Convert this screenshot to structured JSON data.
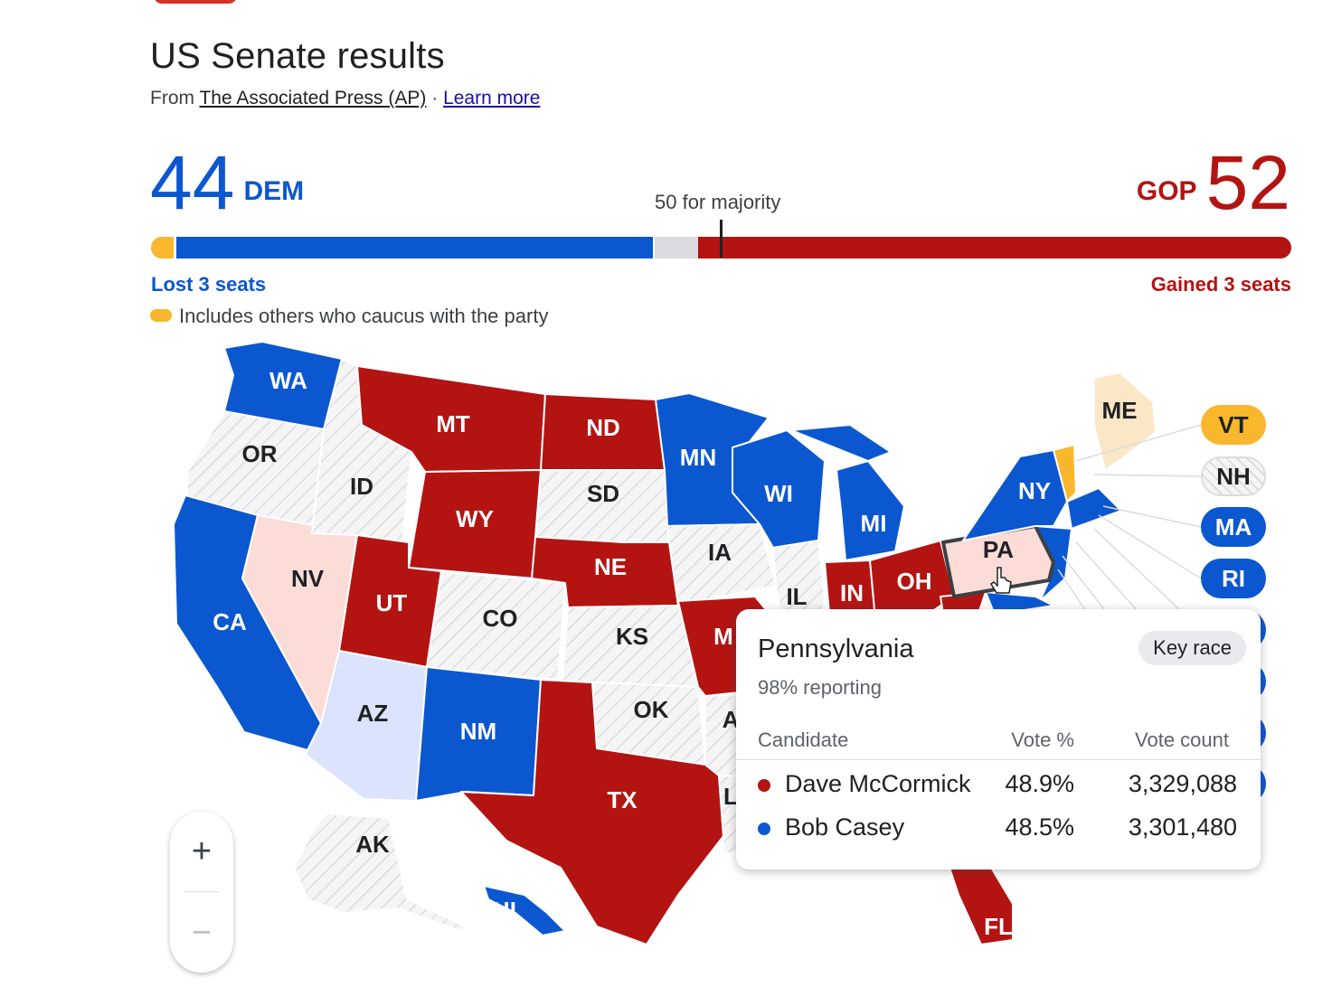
{
  "header": {
    "title": "US Senate results",
    "source_prefix": "From ",
    "source_link": "The Associated Press (AP)",
    "separator": " · ",
    "learn_more": "Learn more"
  },
  "tally": {
    "dem_seats": "44",
    "dem_label": "DEM",
    "gop_seats": "52",
    "gop_label": "GOP",
    "majority_label": "50 for majority",
    "dem_change": "Lost 3 seats",
    "gop_change": "Gained 3 seats",
    "legend_text": "Includes others who caucus with the party",
    "seat_split": {
      "independent_dem": 2,
      "dem": 42,
      "undecided": 4,
      "gop": 52,
      "majority": 50
    }
  },
  "colors": {
    "dem": "#0b57d0",
    "gop": "#b31412",
    "independent": "#f9b72d",
    "lean_dem": "#dbe3fd",
    "lean_gop": "#fbdcd7",
    "lean_ind": "#fbe6c6",
    "no_race": "#f1f3f4",
    "undecided_bar": "#dadce0"
  },
  "map": {
    "states": [
      {
        "id": "WA",
        "label": "WA",
        "status": "dem"
      },
      {
        "id": "OR",
        "label": "OR",
        "status": "none"
      },
      {
        "id": "CA",
        "label": "CA",
        "status": "dem"
      },
      {
        "id": "NV",
        "label": "NV",
        "status": "lean_gop"
      },
      {
        "id": "ID",
        "label": "ID",
        "status": "none"
      },
      {
        "id": "MT",
        "label": "MT",
        "status": "gop"
      },
      {
        "id": "WY",
        "label": "WY",
        "status": "gop"
      },
      {
        "id": "UT",
        "label": "UT",
        "status": "gop"
      },
      {
        "id": "AZ",
        "label": "AZ",
        "status": "lean_dem"
      },
      {
        "id": "CO",
        "label": "CO",
        "status": "none"
      },
      {
        "id": "NM",
        "label": "NM",
        "status": "dem"
      },
      {
        "id": "ND",
        "label": "ND",
        "status": "gop"
      },
      {
        "id": "SD",
        "label": "SD",
        "status": "none"
      },
      {
        "id": "NE",
        "label": "NE",
        "status": "gop"
      },
      {
        "id": "KS",
        "label": "KS",
        "status": "none"
      },
      {
        "id": "OK",
        "label": "OK",
        "status": "none"
      },
      {
        "id": "TX",
        "label": "TX",
        "status": "gop"
      },
      {
        "id": "MN",
        "label": "MN",
        "status": "dem"
      },
      {
        "id": "IA",
        "label": "IA",
        "status": "none"
      },
      {
        "id": "MO",
        "label": "M",
        "status": "gop"
      },
      {
        "id": "AR",
        "label": "A",
        "status": "none"
      },
      {
        "id": "LA",
        "label": "L",
        "status": "none"
      },
      {
        "id": "WI",
        "label": "WI",
        "status": "dem"
      },
      {
        "id": "IL",
        "label": "IL",
        "status": "none"
      },
      {
        "id": "MI",
        "label": "MI",
        "status": "dem"
      },
      {
        "id": "IN",
        "label": "IN",
        "status": "gop"
      },
      {
        "id": "OH",
        "label": "OH",
        "status": "gop"
      },
      {
        "id": "WV",
        "label": "",
        "status": "gop"
      },
      {
        "id": "PA",
        "label": "PA",
        "status": "lean_gop"
      },
      {
        "id": "NY",
        "label": "NY",
        "status": "dem"
      },
      {
        "id": "ME",
        "label": "ME",
        "status": "lean_ind"
      },
      {
        "id": "FL",
        "label": "FL",
        "status": "gop"
      },
      {
        "id": "AK",
        "label": "AK",
        "status": "none"
      },
      {
        "id": "HI",
        "label": "HI",
        "status": "dem"
      }
    ],
    "northeast_chips": [
      {
        "id": "VT",
        "label": "VT",
        "status": "independent"
      },
      {
        "id": "NH",
        "label": "NH",
        "status": "none"
      },
      {
        "id": "MA",
        "label": "MA",
        "status": "dem"
      },
      {
        "id": "RI",
        "label": "RI",
        "status": "dem"
      }
    ]
  },
  "zoom": {
    "in_label": "+",
    "out_label": "−"
  },
  "state_card": {
    "state": "Pennsylvania",
    "badge": "Key race",
    "reporting": "98% reporting",
    "columns": [
      "Candidate",
      "Vote %",
      "Vote count"
    ],
    "candidates": [
      {
        "name": "Dave McCormick",
        "party": "gop",
        "pct": "48.9%",
        "votes": "3,329,088"
      },
      {
        "name": "Bob Casey",
        "party": "dem",
        "pct": "48.5%",
        "votes": "3,301,480"
      }
    ]
  }
}
